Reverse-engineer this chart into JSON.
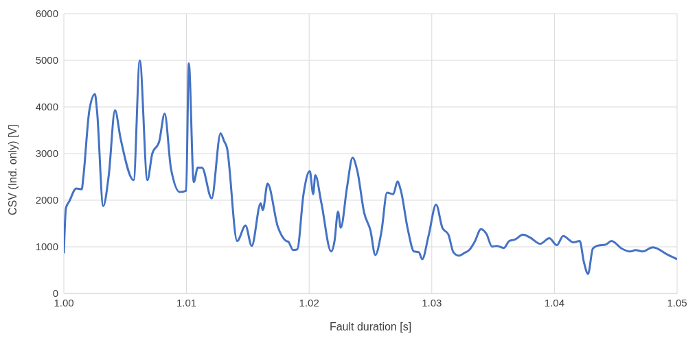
{
  "chart_data": {
    "type": "line",
    "xlabel": "Fault duration [s]",
    "ylabel": "CSV (Ind. only) [V]",
    "x": [
      1.0,
      1.00017,
      1.00045,
      1.00101,
      1.00146,
      1.00158,
      1.00208,
      1.00253,
      1.0027,
      1.00321,
      1.00366,
      1.00417,
      1.00462,
      1.00569,
      1.00619,
      1.00681,
      1.00721,
      1.00777,
      1.00822,
      1.00873,
      1.00946,
      1.00997,
      1.01019,
      1.01059,
      1.01092,
      1.01126,
      1.01205,
      1.01278,
      1.01306,
      1.01329,
      1.01413,
      1.01481,
      1.01532,
      1.01605,
      1.01622,
      1.01661,
      1.01745,
      1.01813,
      1.0183,
      1.01869,
      1.01903,
      1.01954,
      1.02005,
      1.02033,
      1.0205,
      1.021,
      1.02179,
      1.02207,
      1.02235,
      1.02258,
      1.02309,
      1.02354,
      1.02393,
      1.02449,
      1.025,
      1.02539,
      1.0259,
      1.02635,
      1.02686,
      1.0272,
      1.02748,
      1.02804,
      1.02855,
      1.02894,
      1.02922,
      1.02973,
      1.03035,
      1.03086,
      1.03136,
      1.03176,
      1.03221,
      1.03266,
      1.03305,
      1.0335,
      1.03401,
      1.03446,
      1.03491,
      1.0353,
      1.03587,
      1.03632,
      1.03677,
      1.03744,
      1.03801,
      1.03885,
      1.03958,
      1.0402,
      1.04071,
      1.04155,
      1.04206,
      1.0424,
      1.04274,
      1.04313,
      1.04347,
      1.0442,
      1.04465,
      1.0455,
      1.04617,
      1.04662,
      1.04718,
      1.04803,
      1.04927,
      1.05
    ],
    "series": [
      {
        "color": "#4472c4",
        "values": [
          860,
          1830,
          1980,
          2250,
          2235,
          2475,
          3930,
          4275,
          3930,
          1875,
          2535,
          3930,
          3330,
          2430,
          4995,
          2430,
          3000,
          3255,
          3855,
          2685,
          2175,
          2205,
          4935,
          2385,
          2700,
          2700,
          2040,
          3435,
          3270,
          3135,
          1125,
          1455,
          1020,
          1935,
          1785,
          2355,
          1425,
          1125,
          1110,
          930,
          945,
          2130,
          2625,
          2130,
          2535,
          1935,
          900,
          1125,
          1755,
          1410,
          2280,
          2910,
          2625,
          1725,
          1350,
          825,
          1335,
          2160,
          2130,
          2400,
          2205,
          1380,
          900,
          885,
          735,
          1230,
          1905,
          1410,
          1260,
          885,
          810,
          870,
          930,
          1110,
          1380,
          1275,
          1005,
          1020,
          975,
          1125,
          1155,
          1260,
          1200,
          1065,
          1185,
          1035,
          1230,
          1095,
          1125,
          675,
          420,
          960,
          1020,
          1050,
          1125,
          960,
          900,
          930,
          900,
          990,
          825,
          735
        ]
      }
    ],
    "xlim": [
      1.0,
      1.05
    ],
    "xticks": [
      {
        "value": 1.0,
        "label": "1.00"
      },
      {
        "value": 1.01,
        "label": "1.01"
      },
      {
        "value": 1.02,
        "label": "1.02"
      },
      {
        "value": 1.03,
        "label": "1.03"
      },
      {
        "value": 1.04,
        "label": "1.04"
      },
      {
        "value": 1.05,
        "label": "1.05"
      }
    ],
    "ylim": [
      0,
      6000
    ],
    "yticks": [
      0,
      1000,
      2000,
      3000,
      4000,
      5000,
      6000
    ],
    "grid": true,
    "marker": "none",
    "line_style": "solid"
  }
}
